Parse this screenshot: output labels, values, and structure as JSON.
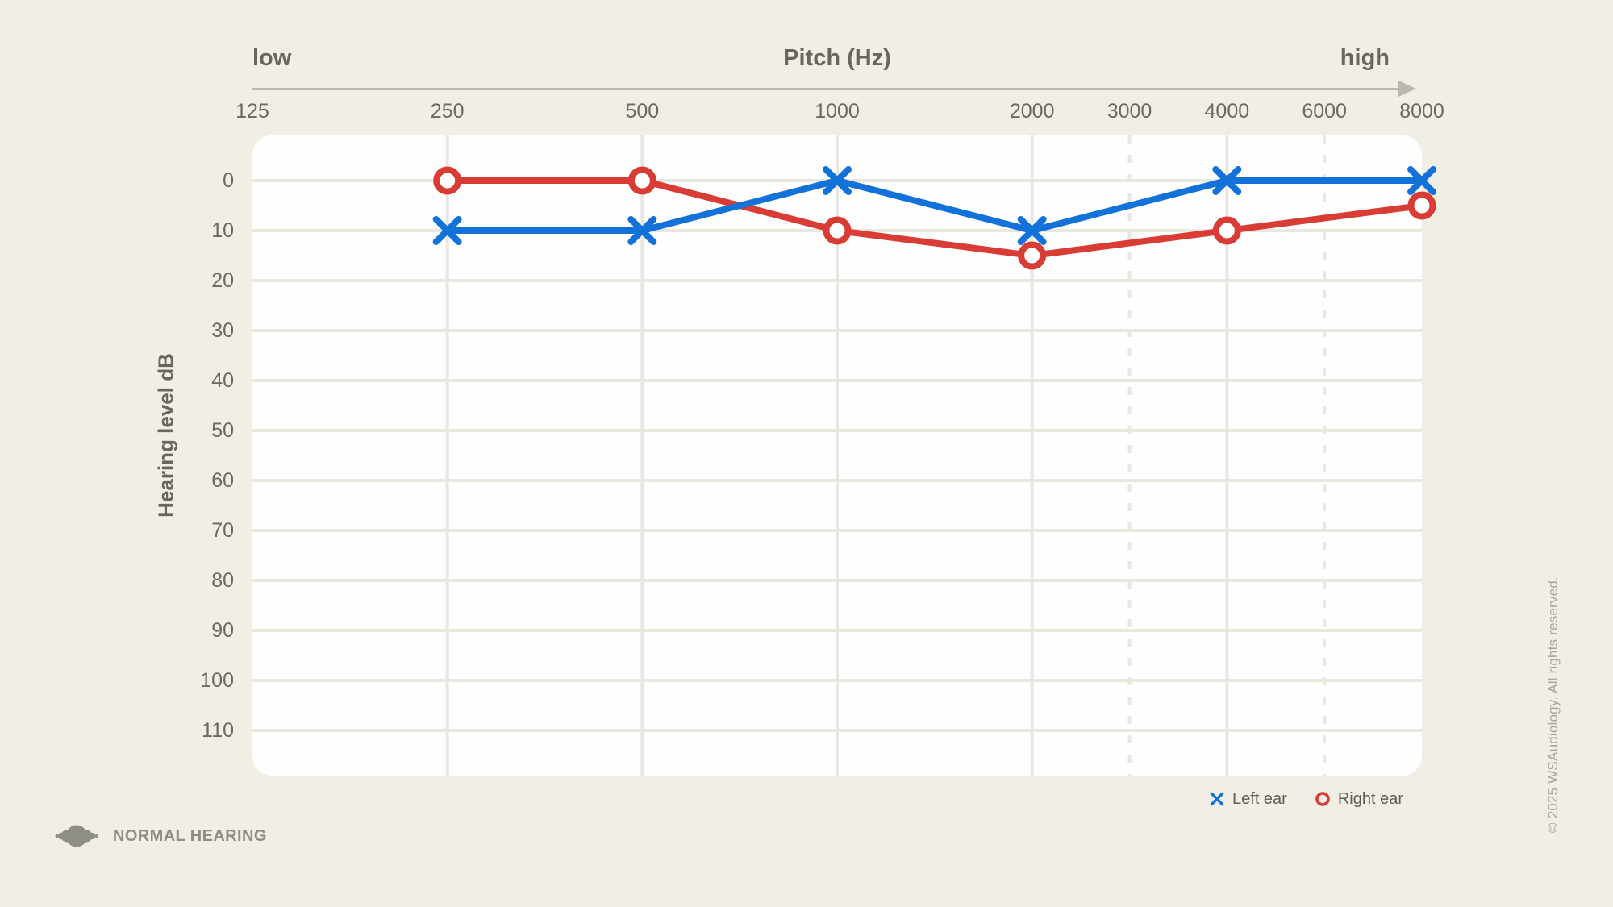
{
  "colors": {
    "background": "#f1efe5",
    "plot_bg": "#fefefe",
    "grid": "#e8e7e0",
    "axis": "#b9b8b0",
    "text_dark": "#68675f",
    "text_tick": "#6b6a62",
    "legend_text": "#5e5e57",
    "logo": "#8e8e86",
    "copyright_text": "#a6a59d",
    "left_ear": "#1372d9",
    "right_ear": "#d93c34"
  },
  "top_axis": {
    "left": "low",
    "title": "Pitch (Hz)",
    "right": "high"
  },
  "chart_data": {
    "type": "line",
    "xlabel": "Pitch (Hz)",
    "ylabel": "Hearing level dB",
    "x_scale": "octave",
    "y_axis_direction": "down",
    "ylim": [
      0,
      110
    ],
    "grid": true,
    "legend_position": "bottom-right",
    "x_ticks": [
      {
        "label": "125",
        "slot": 0,
        "line": "none"
      },
      {
        "label": "250",
        "slot": 1,
        "line": "solid"
      },
      {
        "label": "500",
        "slot": 2,
        "line": "solid"
      },
      {
        "label": "1000",
        "slot": 3,
        "line": "solid"
      },
      {
        "label": "2000",
        "slot": 4,
        "line": "solid"
      },
      {
        "label": "3000",
        "slot": 4.5,
        "line": "dashed"
      },
      {
        "label": "4000",
        "slot": 5,
        "line": "solid"
      },
      {
        "label": "6000",
        "slot": 5.5,
        "line": "dashed"
      },
      {
        "label": "8000",
        "slot": 6,
        "line": "none"
      }
    ],
    "y_ticks": [
      0,
      10,
      20,
      30,
      40,
      50,
      60,
      70,
      80,
      90,
      100,
      110
    ],
    "series": [
      {
        "name": "Left ear",
        "marker": "x",
        "color_key": "left_ear",
        "points": [
          {
            "f": 250,
            "db": 10
          },
          {
            "f": 500,
            "db": 10
          },
          {
            "f": 1000,
            "db": 0
          },
          {
            "f": 2000,
            "db": 10
          },
          {
            "f": 4000,
            "db": 0
          },
          {
            "f": 8000,
            "db": 0
          }
        ]
      },
      {
        "name": "Right ear",
        "marker": "o",
        "color_key": "right_ear",
        "points": [
          {
            "f": 250,
            "db": 0
          },
          {
            "f": 500,
            "db": 0
          },
          {
            "f": 1000,
            "db": 10
          },
          {
            "f": 2000,
            "db": 15
          },
          {
            "f": 4000,
            "db": 10
          },
          {
            "f": 8000,
            "db": 5
          }
        ]
      }
    ]
  },
  "legend": {
    "items": [
      {
        "label": "Left ear",
        "marker": "x"
      },
      {
        "label": "Right ear",
        "marker": "o"
      }
    ]
  },
  "footer": {
    "logo_text": "NORMAL HEARING",
    "copyright": "© 2025 WSAudiology. All rights reserved."
  }
}
